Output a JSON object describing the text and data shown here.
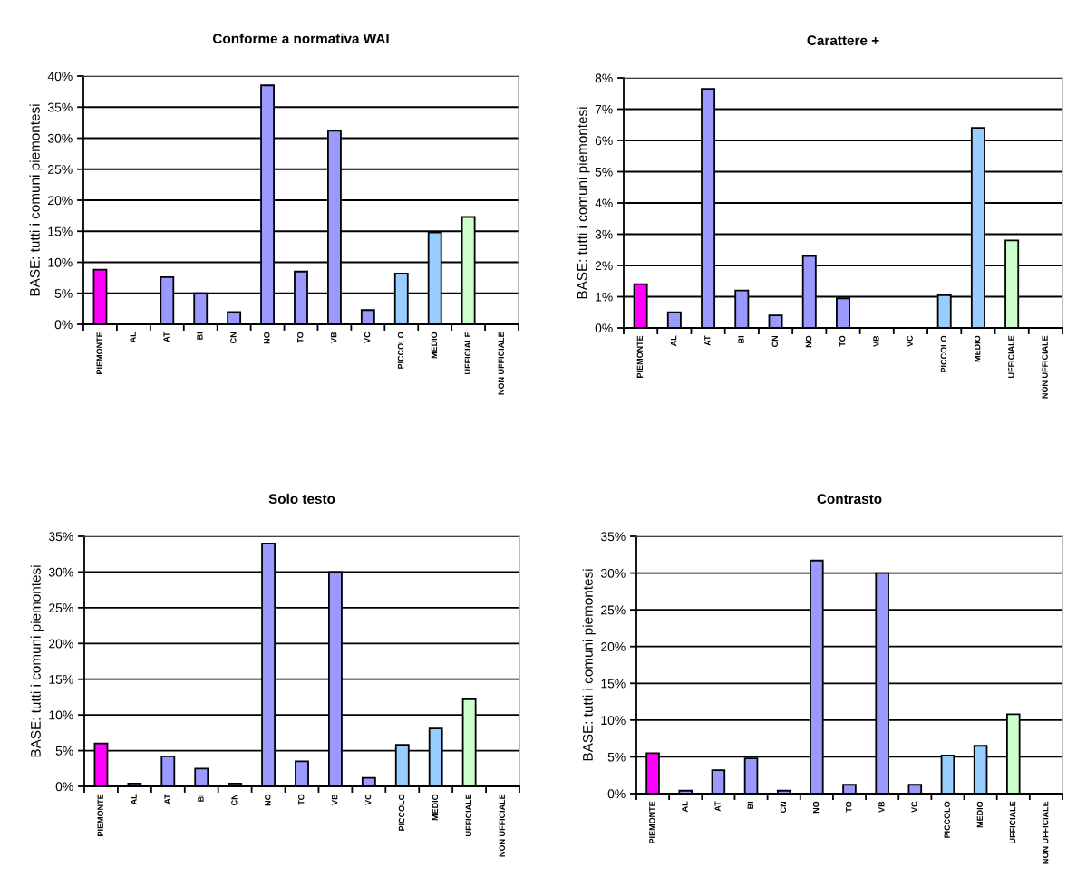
{
  "chart_data": [
    {
      "type": "bar",
      "title": "Conforme a normativa WAI",
      "ylabel": "BASE: tutti i comuni piemontesi",
      "categories": [
        "PIEMONTE",
        "AL",
        "AT",
        "BI",
        "CN",
        "NO",
        "TO",
        "VB",
        "VC",
        "PICCOLO",
        "MEDIO",
        "UFFICIALE",
        "NON UFFICIALE"
      ],
      "values": [
        8.8,
        0,
        7.6,
        5.0,
        2.0,
        38.5,
        8.5,
        31.2,
        2.3,
        8.2,
        14.8,
        17.3,
        0
      ],
      "colors": [
        "#ff00ff",
        null,
        "#9999ff",
        "#9999ff",
        "#9999ff",
        "#9999ff",
        "#9999ff",
        "#9999ff",
        "#9999ff",
        "#99ccff",
        "#99ccff",
        "#ccffcc",
        null
      ],
      "ylim": [
        0,
        40
      ],
      "yticks": [
        {
          "value": 0,
          "label": "0%"
        },
        {
          "value": 5,
          "label": "5%"
        },
        {
          "value": 10,
          "label": "10%"
        },
        {
          "value": 15,
          "label": "15%"
        },
        {
          "value": 20,
          "label": "20%"
        },
        {
          "value": 25,
          "label": "25%"
        },
        {
          "value": 30,
          "label": "30%"
        },
        {
          "value": 35,
          "label": "35%"
        },
        {
          "value": 40,
          "label": "40%"
        }
      ],
      "grid": "y",
      "legend": false
    },
    {
      "type": "bar",
      "title": "Carattere +",
      "ylabel": "BASE: tutti i comuni piemontesi",
      "categories": [
        "PIEMONTE",
        "AL",
        "AT",
        "BI",
        "CN",
        "NO",
        "TO",
        "VB",
        "VC",
        "PICCOLO",
        "MEDIO",
        "UFFICIALE",
        "NON UFFICIALE"
      ],
      "values": [
        1.4,
        0.5,
        7.65,
        1.2,
        0.4,
        2.3,
        0.95,
        0,
        0,
        1.05,
        6.4,
        2.8,
        0
      ],
      "colors": [
        "#ff00ff",
        "#9999ff",
        "#9999ff",
        "#9999ff",
        "#9999ff",
        "#9999ff",
        "#9999ff",
        null,
        null,
        "#99ccff",
        "#99ccff",
        "#ccffcc",
        null
      ],
      "ylim": [
        0,
        8
      ],
      "yticks": [
        {
          "value": 0,
          "label": "0%"
        },
        {
          "value": 1,
          "label": "1%"
        },
        {
          "value": 2,
          "label": "2%"
        },
        {
          "value": 3,
          "label": "3%"
        },
        {
          "value": 4,
          "label": "4%"
        },
        {
          "value": 5,
          "label": "5%"
        },
        {
          "value": 6,
          "label": "6%"
        },
        {
          "value": 7,
          "label": "7%"
        },
        {
          "value": 8,
          "label": "8%"
        }
      ],
      "grid": "y",
      "legend": false
    },
    {
      "type": "bar",
      "title": "Solo testo",
      "ylabel": "BASE: tutti i comuni piemontesi",
      "categories": [
        "PIEMONTE",
        "AL",
        "AT",
        "BI",
        "CN",
        "NO",
        "TO",
        "VB",
        "VC",
        "PICCOLO",
        "MEDIO",
        "UFFICIALE",
        "NON UFFICIALE"
      ],
      "values": [
        6.0,
        0.4,
        4.2,
        2.5,
        0.4,
        34.0,
        3.5,
        30.0,
        1.2,
        5.8,
        8.1,
        12.2,
        0
      ],
      "colors": [
        "#ff00ff",
        "#9999ff",
        "#9999ff",
        "#9999ff",
        "#9999ff",
        "#9999ff",
        "#9999ff",
        "#9999ff",
        "#9999ff",
        "#99ccff",
        "#99ccff",
        "#ccffcc",
        null
      ],
      "ylim": [
        0,
        35
      ],
      "yticks": [
        {
          "value": 0,
          "label": "0%"
        },
        {
          "value": 5,
          "label": "5%"
        },
        {
          "value": 10,
          "label": "10%"
        },
        {
          "value": 15,
          "label": "15%"
        },
        {
          "value": 20,
          "label": "20%"
        },
        {
          "value": 25,
          "label": "25%"
        },
        {
          "value": 30,
          "label": "30%"
        },
        {
          "value": 35,
          "label": "35%"
        }
      ],
      "grid": "y",
      "legend": false
    },
    {
      "type": "bar",
      "title": "Contrasto",
      "ylabel": "BASE: tutti i comuni piemontesi",
      "categories": [
        "PIEMONTE",
        "AL",
        "AT",
        "BI",
        "CN",
        "NO",
        "TO",
        "VB",
        "VC",
        "PICCOLO",
        "MEDIO",
        "UFFICIALE",
        "NON UFFICIALE"
      ],
      "values": [
        5.5,
        0.4,
        3.2,
        4.8,
        0.4,
        31.7,
        1.2,
        30.0,
        1.2,
        5.2,
        6.5,
        10.8,
        0
      ],
      "colors": [
        "#ff00ff",
        "#9999ff",
        "#9999ff",
        "#9999ff",
        "#9999ff",
        "#9999ff",
        "#9999ff",
        "#9999ff",
        "#9999ff",
        "#99ccff",
        "#99ccff",
        "#ccffcc",
        null
      ],
      "ylim": [
        0,
        35
      ],
      "yticks": [
        {
          "value": 0,
          "label": "0%"
        },
        {
          "value": 5,
          "label": "5%"
        },
        {
          "value": 10,
          "label": "10%"
        },
        {
          "value": 15,
          "label": "15%"
        },
        {
          "value": 20,
          "label": "20%"
        },
        {
          "value": 25,
          "label": "25%"
        },
        {
          "value": 30,
          "label": "30%"
        },
        {
          "value": 35,
          "label": "35%"
        }
      ],
      "grid": "y",
      "legend": false
    }
  ]
}
